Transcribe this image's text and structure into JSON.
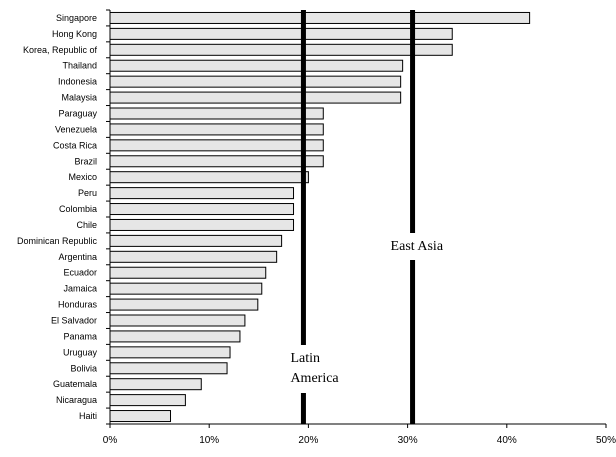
{
  "chart_data": {
    "type": "bar",
    "orientation": "horizontal",
    "categories": [
      "Singapore",
      "Hong Kong",
      "Korea, Republic of",
      "Thailand",
      "Indonesia",
      "Malaysia",
      "Paraguay",
      "Venezuela",
      "Costa Rica",
      "Brazil",
      "Mexico",
      "Peru",
      "Colombia",
      "Chile",
      "Dominican Republic",
      "Argentina",
      "Ecuador",
      "Jamaica",
      "Honduras",
      "El Salvador",
      "Panama",
      "Uruguay",
      "Bolivia",
      "Guatemala",
      "Nicaragua",
      "Haiti"
    ],
    "values": [
      42.3,
      34.5,
      34.5,
      29.5,
      29.3,
      29.3,
      21.5,
      21.5,
      21.5,
      21.5,
      20.0,
      18.5,
      18.5,
      18.5,
      17.3,
      16.8,
      15.7,
      15.3,
      14.9,
      13.6,
      13.1,
      12.1,
      11.8,
      9.2,
      7.6,
      6.1
    ],
    "xlim": [
      0,
      50
    ],
    "xticks": [
      "0%",
      "10%",
      "20%",
      "30%",
      "40%",
      "50%"
    ],
    "grid": false,
    "colors": {
      "bar_fill": "#e6e6e6",
      "bar_stroke": "#000000",
      "ref_line": "#000000"
    },
    "reference_lines": [
      {
        "value": 19.5,
        "label_lines": [
          "Latin",
          "America"
        ]
      },
      {
        "value": 30.5,
        "label_lines": [
          "East Asia"
        ]
      }
    ]
  }
}
